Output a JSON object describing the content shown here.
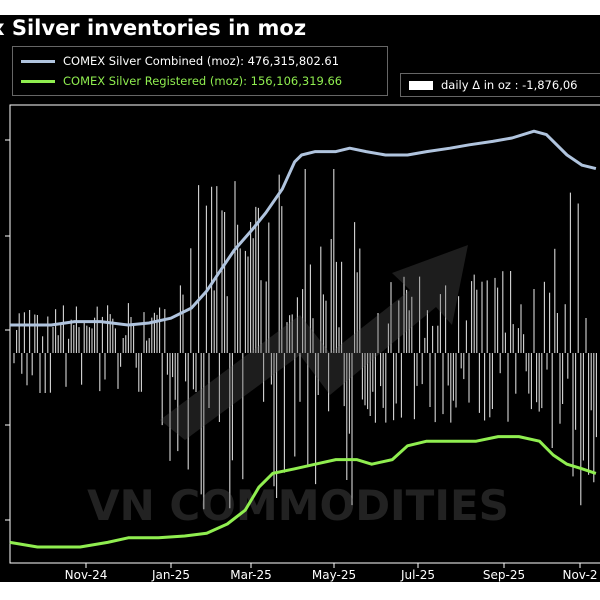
{
  "chart_data": {
    "type": "line",
    "title": "x Silver inventories in moz",
    "x_tick_labels": [
      "Nov-24",
      "Jan-25",
      "Mar-25",
      "May-25",
      "Jul-25",
      "Sep-25",
      "Nov-2"
    ],
    "series": [
      {
        "name": "COMEX Silver Combined (moz): 476,315,802.61",
        "color": "#b0c4de",
        "points": [
          [
            "2024-09-15",
            0.0
          ],
          [
            "2024-10-01",
            0.0
          ],
          [
            "2024-10-15",
            0.0
          ],
          [
            "2024-11-01",
            0.5
          ],
          [
            "2024-11-20",
            0.5
          ],
          [
            "2024-12-10",
            0.0
          ],
          [
            "2024-12-25",
            0.3
          ],
          [
            "2025-01-10",
            1.0
          ],
          [
            "2025-01-25",
            2.5
          ],
          [
            "2025-02-05",
            5.0
          ],
          [
            "2025-02-15",
            8.0
          ],
          [
            "2025-02-25",
            11.0
          ],
          [
            "2025-03-10",
            14.0
          ],
          [
            "2025-03-20",
            16.5
          ],
          [
            "2025-04-01",
            20.0
          ],
          [
            "2025-04-10",
            24.0
          ],
          [
            "2025-04-15",
            25.0
          ],
          [
            "2025-04-25",
            25.5
          ],
          [
            "2025-05-10",
            25.5
          ],
          [
            "2025-05-20",
            26.0
          ],
          [
            "2025-06-01",
            25.5
          ],
          [
            "2025-06-15",
            25.0
          ],
          [
            "2025-07-01",
            25.0
          ],
          [
            "2025-07-15",
            25.5
          ],
          [
            "2025-08-01",
            26.0
          ],
          [
            "2025-08-15",
            26.5
          ],
          [
            "2025-09-01",
            27.0
          ],
          [
            "2025-09-15",
            27.5
          ],
          [
            "2025-10-01",
            28.5
          ],
          [
            "2025-10-10",
            28.0
          ],
          [
            "2025-10-25",
            25.0
          ],
          [
            "2025-11-05",
            23.5
          ],
          [
            "2025-11-15",
            23.0
          ]
        ]
      },
      {
        "name": "COMEX Silver Registered (moz): 156,106,319.66",
        "color": "#90ee50",
        "points": [
          [
            "2024-09-15",
            0.5
          ],
          [
            "2024-10-05",
            0.0
          ],
          [
            "2024-10-20",
            0.0
          ],
          [
            "2024-11-05",
            0.0
          ],
          [
            "2024-11-25",
            0.5
          ],
          [
            "2024-12-10",
            1.0
          ],
          [
            "2025-01-01",
            1.0
          ],
          [
            "2025-01-20",
            1.2
          ],
          [
            "2025-02-05",
            1.5
          ],
          [
            "2025-02-20",
            2.5
          ],
          [
            "2025-03-05",
            4.0
          ],
          [
            "2025-03-15",
            6.5
          ],
          [
            "2025-03-25",
            8.0
          ],
          [
            "2025-04-10",
            8.5
          ],
          [
            "2025-04-25",
            9.0
          ],
          [
            "2025-05-10",
            9.5
          ],
          [
            "2025-05-25",
            9.5
          ],
          [
            "2025-06-05",
            9.0
          ],
          [
            "2025-06-20",
            9.5
          ],
          [
            "2025-07-01",
            11.0
          ],
          [
            "2025-07-15",
            11.5
          ],
          [
            "2025-08-01",
            11.5
          ],
          [
            "2025-08-20",
            11.5
          ],
          [
            "2025-09-05",
            12.0
          ],
          [
            "2025-09-20",
            12.0
          ],
          [
            "2025-10-05",
            11.5
          ],
          [
            "2025-10-15",
            10.0
          ],
          [
            "2025-10-25",
            9.0
          ],
          [
            "2025-11-05",
            8.5
          ],
          [
            "2025-11-15",
            8.0
          ]
        ]
      }
    ],
    "bars_legend": "daily Δ in oz : -1,876,06",
    "watermark": "VN COMMODITIES",
    "grid": false,
    "legend_position": "top-left"
  }
}
